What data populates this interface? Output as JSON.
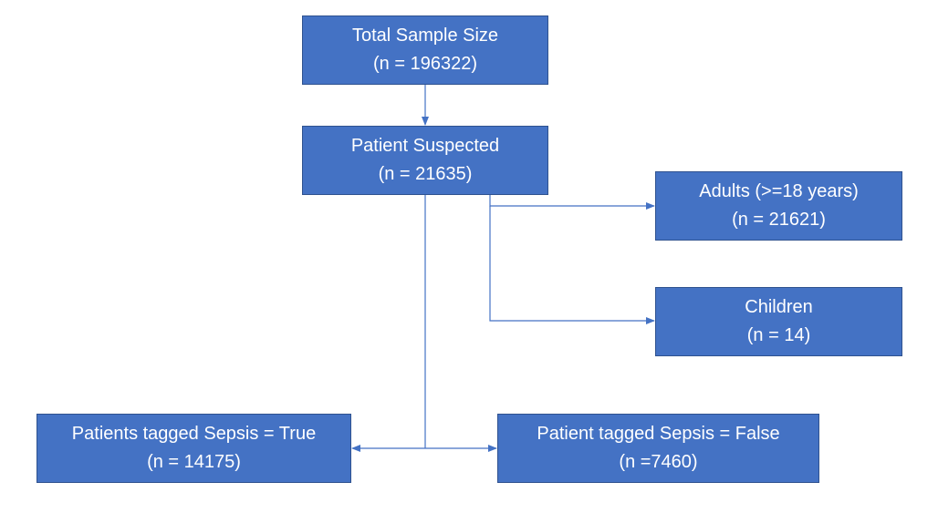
{
  "nodes": {
    "total": {
      "line1": "Total Sample Size",
      "line2": "(n = 196322)"
    },
    "suspected": {
      "line1": "Patient Suspected",
      "line2": "(n = 21635)"
    },
    "adults": {
      "line1": "Adults (>=18 years)",
      "line2": "(n = 21621)"
    },
    "children": {
      "line1": "Children",
      "line2": "(n = 14)"
    },
    "sepsis_true": {
      "line1": "Patients tagged Sepsis = True",
      "line2": "(n = 14175)"
    },
    "sepsis_false": {
      "line1": "Patient tagged Sepsis = False",
      "line2": "(n =7460)"
    }
  },
  "colors": {
    "box_fill": "#4472c4",
    "box_border": "#2f528f",
    "connector": "#4472c4",
    "text": "#ffffff"
  }
}
